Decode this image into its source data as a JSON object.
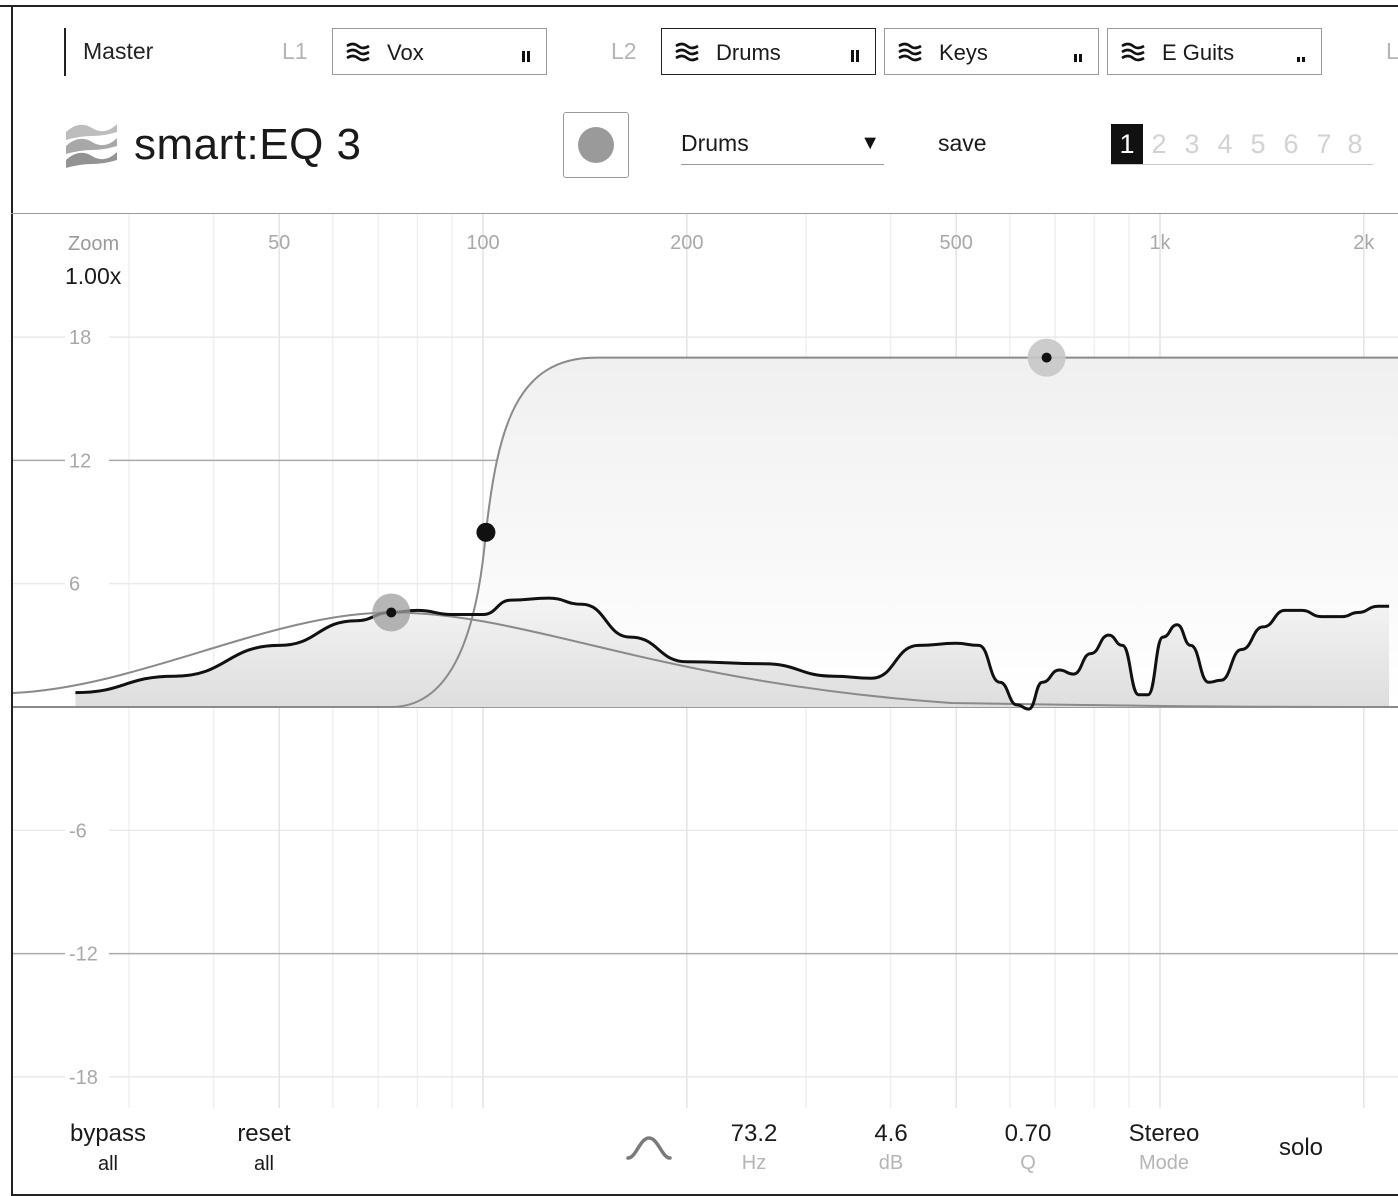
{
  "layers": {
    "master_label": "Master",
    "group_labels": [
      "L1",
      "L2",
      "L"
    ],
    "items": [
      {
        "name": "Vox",
        "active": false,
        "level": 0.75
      },
      {
        "name": "Drums",
        "active": true,
        "level": 0.85
      },
      {
        "name": "Keys",
        "active": false,
        "level": 0.55
      },
      {
        "name": "E Guits",
        "active": false,
        "level": 0.35
      }
    ]
  },
  "header": {
    "logo_text": "smart:EQ 3",
    "preset": "Drums",
    "preset_caret": "▼",
    "save_label": "save",
    "slots": [
      "1",
      "2",
      "3",
      "4",
      "5",
      "6",
      "7",
      "8"
    ],
    "active_slot": "1"
  },
  "graph": {
    "zoom_label": "Zoom",
    "zoom_value": "1.00x",
    "freq_labels": [
      {
        "hz": 50,
        "label": "50"
      },
      {
        "hz": 100,
        "label": "100"
      },
      {
        "hz": 200,
        "label": "200"
      },
      {
        "hz": 500,
        "label": "500"
      },
      {
        "hz": 1000,
        "label": "1k"
      },
      {
        "hz": 2000,
        "label": "2k"
      }
    ],
    "db_labels": [
      {
        "db": 18,
        "label": "18"
      },
      {
        "db": 12,
        "label": "12"
      },
      {
        "db": 6,
        "label": "6"
      },
      {
        "db": -6,
        "label": "-6"
      },
      {
        "db": -12,
        "label": "-12"
      },
      {
        "db": -18,
        "label": "-18"
      }
    ],
    "bands": [
      {
        "type": "bell",
        "freq_hz": 73.2,
        "gain_db": 4.6,
        "q": 0.7,
        "selected": true
      },
      {
        "type": "highpass",
        "freq_hz": 101,
        "gain_db": 8.5,
        "selected": false
      },
      {
        "type": "shelf",
        "freq_hz": 680,
        "gain_db": 17,
        "selected": false
      }
    ],
    "smart_curve": [
      [
        25,
        0.7
      ],
      [
        35,
        1.5
      ],
      [
        50,
        3.0
      ],
      [
        65,
        4.2
      ],
      [
        73,
        4.6
      ],
      [
        80,
        4.7
      ],
      [
        90,
        4.5
      ],
      [
        100,
        4.5
      ],
      [
        110,
        5.2
      ],
      [
        125,
        5.3
      ],
      [
        140,
        5.0
      ],
      [
        165,
        3.4
      ],
      [
        200,
        2.2
      ],
      [
        260,
        2.1
      ],
      [
        330,
        1.5
      ],
      [
        375,
        1.4
      ],
      [
        440,
        3.0
      ],
      [
        500,
        3.1
      ],
      [
        540,
        3.0
      ],
      [
        580,
        1.2
      ],
      [
        615,
        0.1
      ],
      [
        640,
        -0.1
      ],
      [
        670,
        1.2
      ],
      [
        710,
        1.8
      ],
      [
        745,
        1.6
      ],
      [
        790,
        2.6
      ],
      [
        840,
        3.5
      ],
      [
        880,
        3.0
      ],
      [
        930,
        0.6
      ],
      [
        960,
        0.6
      ],
      [
        1010,
        3.4
      ],
      [
        1060,
        4.0
      ],
      [
        1110,
        3.0
      ],
      [
        1180,
        1.2
      ],
      [
        1230,
        1.3
      ],
      [
        1320,
        2.8
      ],
      [
        1420,
        3.9
      ],
      [
        1530,
        4.7
      ],
      [
        1620,
        4.7
      ],
      [
        1730,
        4.4
      ],
      [
        1860,
        4.4
      ],
      [
        1960,
        4.6
      ],
      [
        2100,
        4.9
      ],
      [
        2180,
        4.9
      ]
    ]
  },
  "controls": {
    "bypass_top": "bypass",
    "bypass_sub": "all",
    "reset_top": "reset",
    "reset_sub": "all",
    "filter_shape_icon": "bell-shape-icon",
    "freq_value": "73.2",
    "freq_unit": "Hz",
    "gain_value": "4.6",
    "gain_unit": "dB",
    "q_value": "0.70",
    "q_unit": "Q",
    "mode_value": "Stereo",
    "mode_unit": "Mode",
    "solo_label": "solo"
  }
}
